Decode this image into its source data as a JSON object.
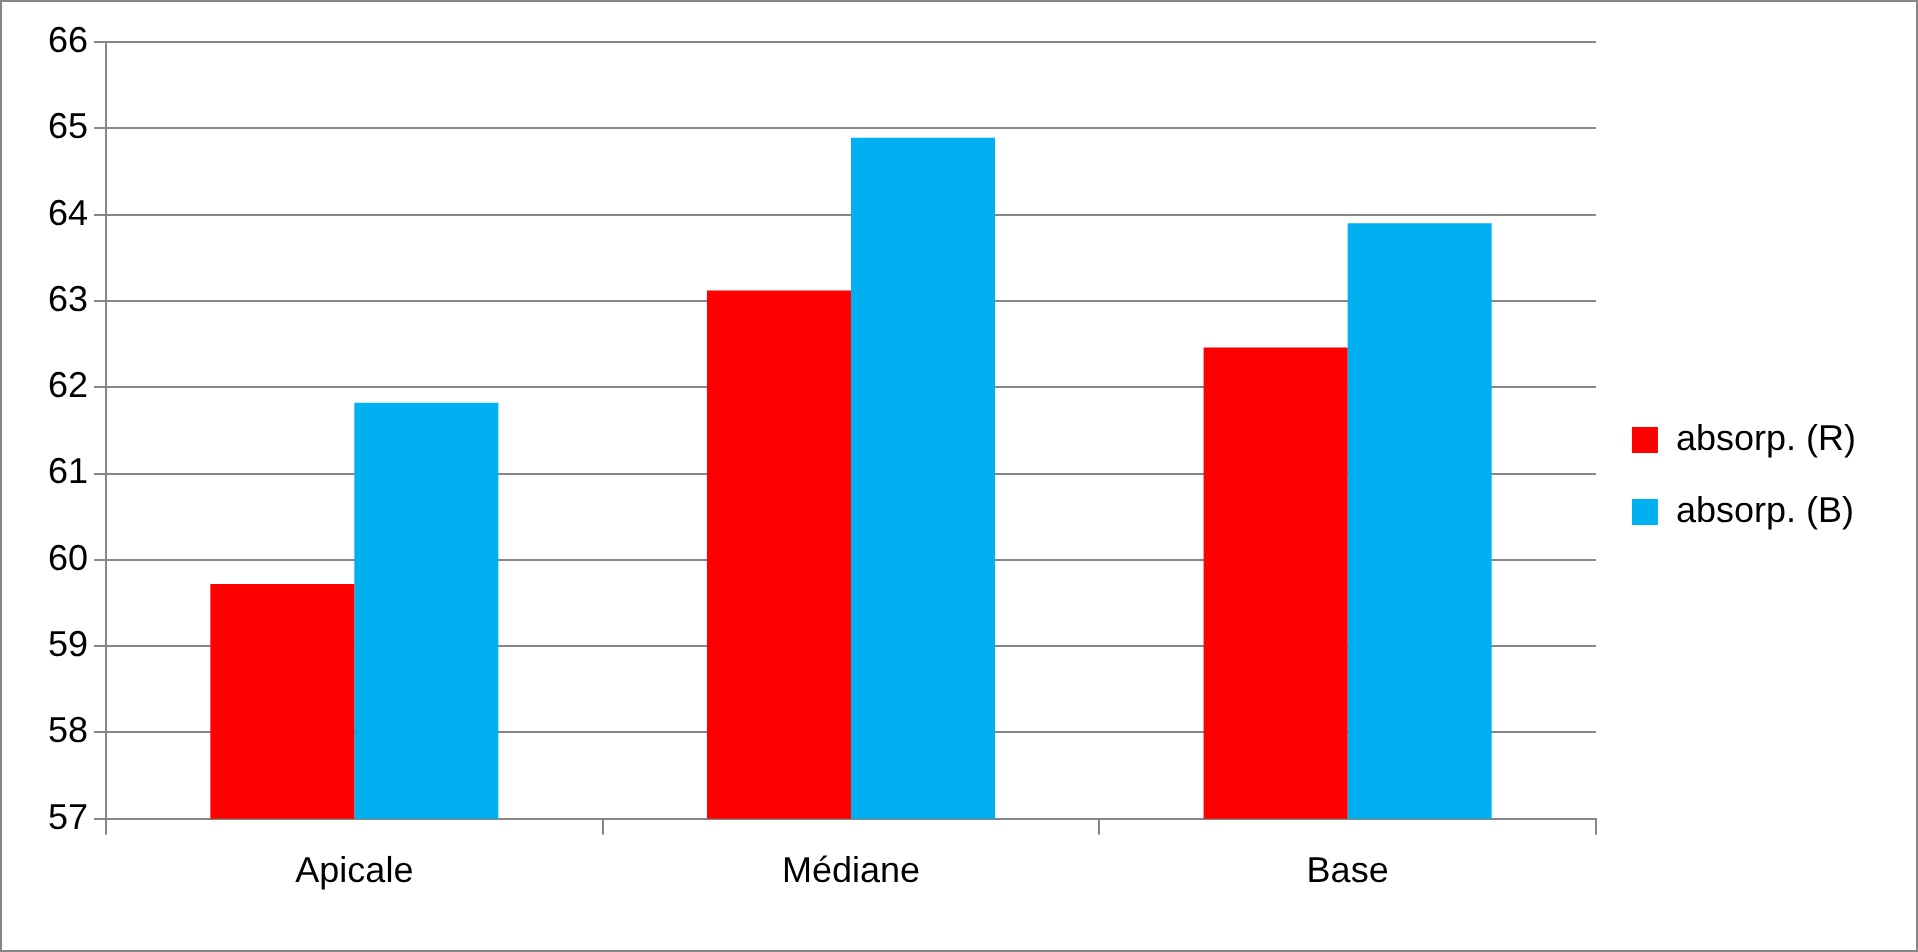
{
  "chart_data": {
    "type": "bar",
    "categories": [
      "Apicale",
      "Médiane",
      "Base"
    ],
    "series": [
      {
        "name": "absorp. (R)",
        "color": "#ff0000",
        "values": [
          59.72,
          63.12,
          62.46
        ]
      },
      {
        "name": "absorp. (B)",
        "color": "#00b0f0",
        "values": [
          61.82,
          64.89,
          63.9
        ]
      }
    ],
    "ylim": [
      57,
      66
    ],
    "yticks": [
      57,
      58,
      59,
      60,
      61,
      62,
      63,
      64,
      65,
      66
    ],
    "grid": "y",
    "legend": "right"
  }
}
